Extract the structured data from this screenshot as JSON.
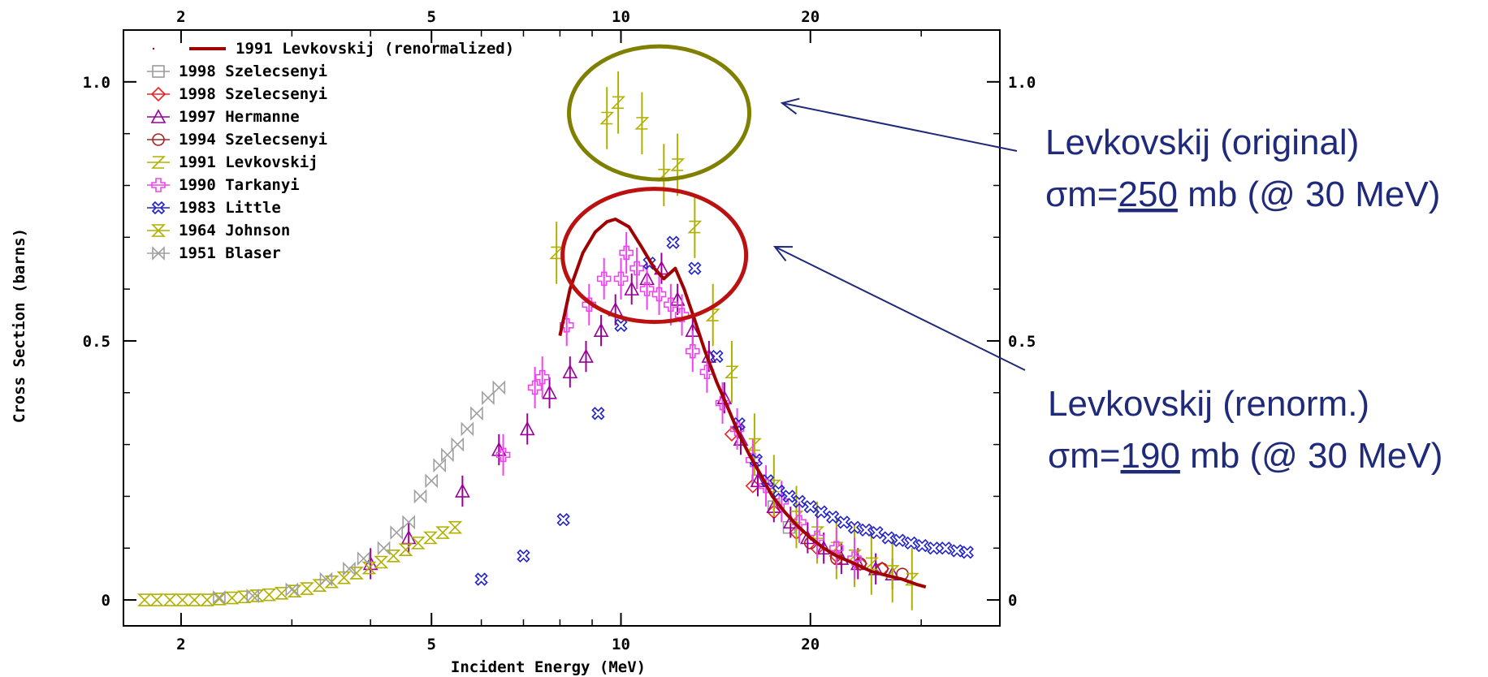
{
  "chart_data": {
    "type": "scatter",
    "xlabel": "Incident Energy (MeV)",
    "ylabel": "Cross Section (barns)",
    "xscale": "log",
    "xlim": [
      1.62,
      40
    ],
    "ylim": [
      -0.05,
      1.1
    ],
    "xticks": [
      2,
      5,
      10,
      20
    ],
    "xtick_labels": [
      "2",
      "5",
      "10",
      "20"
    ],
    "yticks": [
      0,
      0.5,
      1.0
    ],
    "ytick_labels": [
      "0",
      "0.5",
      "1.0"
    ],
    "legend_position": "top-left",
    "grid": false,
    "series": [
      {
        "name": "1991 Levkovskij (renormalized)",
        "marker": "line",
        "color": "#a00000",
        "points": [
          [
            8.0,
            0.51
          ],
          [
            8.3,
            0.6
          ],
          [
            8.7,
            0.67
          ],
          [
            9.1,
            0.71
          ],
          [
            9.5,
            0.73
          ],
          [
            9.8,
            0.735
          ],
          [
            10.3,
            0.72
          ],
          [
            10.8,
            0.68
          ],
          [
            11.3,
            0.64
          ],
          [
            11.7,
            0.62
          ],
          [
            12.2,
            0.64
          ],
          [
            12.6,
            0.6
          ],
          [
            13.1,
            0.54
          ],
          [
            13.6,
            0.48
          ],
          [
            14.2,
            0.42
          ],
          [
            14.8,
            0.37
          ],
          [
            15.4,
            0.32
          ],
          [
            16.0,
            0.28
          ],
          [
            16.7,
            0.24
          ],
          [
            17.4,
            0.2
          ],
          [
            18.2,
            0.17
          ],
          [
            19.0,
            0.145
          ],
          [
            20.0,
            0.12
          ],
          [
            21.0,
            0.1
          ],
          [
            22.0,
            0.085
          ],
          [
            23.0,
            0.075
          ],
          [
            24.0,
            0.065
          ],
          [
            25.0,
            0.055
          ],
          [
            26.5,
            0.047
          ],
          [
            28.0,
            0.04
          ],
          [
            29.5,
            0.03
          ],
          [
            30.5,
            0.025
          ]
        ]
      },
      {
        "name": "1998 Szelecsenyi",
        "marker": "square",
        "color": "#9a9a9a",
        "points": [
          [
            16.5,
            0.23
          ],
          [
            17.5,
            0.18
          ],
          [
            18.5,
            0.14
          ]
        ]
      },
      {
        "name": "1998 Szelecsenyi",
        "marker": "diamond",
        "color": "#ee2222",
        "points": [
          [
            15.0,
            0.32
          ],
          [
            16.2,
            0.22
          ],
          [
            17.5,
            0.17
          ],
          [
            19.0,
            0.13
          ],
          [
            20.5,
            0.1
          ],
          [
            22.0,
            0.085
          ],
          [
            24.0,
            0.07
          ],
          [
            26.0,
            0.06
          ]
        ]
      },
      {
        "name": "1997 Hermanne",
        "marker": "triangle",
        "color": "#990099",
        "points": [
          [
            4.0,
            0.07
          ],
          [
            4.6,
            0.12
          ],
          [
            5.6,
            0.21
          ],
          [
            6.4,
            0.29
          ],
          [
            7.1,
            0.33
          ],
          [
            7.7,
            0.4
          ],
          [
            8.3,
            0.44
          ],
          [
            8.8,
            0.47
          ],
          [
            9.3,
            0.52
          ],
          [
            9.8,
            0.56
          ],
          [
            10.4,
            0.6
          ],
          [
            11.0,
            0.62
          ],
          [
            11.6,
            0.64
          ],
          [
            12.3,
            0.58
          ],
          [
            13.0,
            0.52
          ],
          [
            13.8,
            0.47
          ],
          [
            14.6,
            0.39
          ],
          [
            15.5,
            0.31
          ],
          [
            16.5,
            0.23
          ],
          [
            17.5,
            0.18
          ],
          [
            18.6,
            0.15
          ],
          [
            19.8,
            0.12
          ],
          [
            21.0,
            0.1
          ],
          [
            22.4,
            0.08
          ],
          [
            23.8,
            0.07
          ],
          [
            25.4,
            0.06
          ],
          [
            27.0,
            0.05
          ]
        ]
      },
      {
        "name": "1994 Szelecsenyi",
        "marker": "circle",
        "color": "#aa2222",
        "points": [
          [
            20.0,
            0.11
          ],
          [
            22.0,
            0.08
          ],
          [
            24.0,
            0.07
          ],
          [
            26.0,
            0.06
          ],
          [
            28.0,
            0.05
          ]
        ]
      },
      {
        "name": "1991 Levkovskij",
        "marker": "zsym",
        "color": "#b0b000",
        "points": [
          [
            7.9,
            0.67
          ],
          [
            9.5,
            0.93
          ],
          [
            9.9,
            0.96
          ],
          [
            10.8,
            0.92
          ],
          [
            11.7,
            0.82
          ],
          [
            12.3,
            0.84
          ],
          [
            13.1,
            0.72
          ],
          [
            14.0,
            0.55
          ],
          [
            15.0,
            0.44
          ],
          [
            16.3,
            0.3
          ],
          [
            17.5,
            0.22
          ],
          [
            19.0,
            0.16
          ],
          [
            20.5,
            0.13
          ],
          [
            22.0,
            0.1
          ],
          [
            23.5,
            0.085
          ],
          [
            25.0,
            0.07
          ],
          [
            27.0,
            0.055
          ],
          [
            29.0,
            0.04
          ]
        ]
      },
      {
        "name": "1990 Tarkanyi",
        "marker": "plus",
        "color": "#ee44ee",
        "points": [
          [
            6.5,
            0.28
          ],
          [
            7.3,
            0.41
          ],
          [
            7.5,
            0.43
          ],
          [
            8.2,
            0.53
          ],
          [
            8.9,
            0.57
          ],
          [
            9.4,
            0.62
          ],
          [
            10.0,
            0.62
          ],
          [
            10.2,
            0.67
          ],
          [
            10.6,
            0.64
          ],
          [
            11.0,
            0.6
          ],
          [
            11.5,
            0.59
          ],
          [
            12.0,
            0.57
          ],
          [
            12.5,
            0.55
          ],
          [
            13.0,
            0.48
          ],
          [
            13.7,
            0.44
          ],
          [
            14.5,
            0.38
          ],
          [
            15.3,
            0.33
          ],
          [
            16.2,
            0.27
          ],
          [
            17.0,
            0.22
          ],
          [
            18.0,
            0.19
          ],
          [
            19.2,
            0.15
          ],
          [
            20.5,
            0.12
          ],
          [
            22.0,
            0.1
          ],
          [
            23.5,
            0.08
          ]
        ]
      },
      {
        "name": "1983 Little",
        "marker": "xsym",
        "color": "#2222cc",
        "points": [
          [
            6.0,
            0.04
          ],
          [
            7.0,
            0.085
          ],
          [
            8.1,
            0.155
          ],
          [
            9.2,
            0.36
          ],
          [
            10.0,
            0.53
          ],
          [
            11.1,
            0.65
          ],
          [
            12.1,
            0.69
          ],
          [
            13.1,
            0.64
          ],
          [
            14.2,
            0.47
          ],
          [
            15.4,
            0.34
          ],
          [
            16.4,
            0.27
          ],
          [
            17.1,
            0.23
          ],
          [
            17.8,
            0.21
          ],
          [
            18.5,
            0.2
          ],
          [
            19.2,
            0.19
          ],
          [
            20.0,
            0.18
          ],
          [
            20.8,
            0.17
          ],
          [
            21.7,
            0.16
          ],
          [
            22.6,
            0.15
          ],
          [
            23.5,
            0.14
          ],
          [
            24.5,
            0.135
          ],
          [
            25.5,
            0.13
          ],
          [
            26.6,
            0.12
          ],
          [
            27.7,
            0.115
          ],
          [
            28.9,
            0.11
          ],
          [
            30.1,
            0.105
          ],
          [
            31.4,
            0.1
          ],
          [
            32.8,
            0.1
          ],
          [
            34.2,
            0.095
          ],
          [
            35.5,
            0.092
          ]
        ]
      },
      {
        "name": "1964 Johnson",
        "marker": "hourglass",
        "color": "#b0b000",
        "points": [
          [
            1.75,
            0
          ],
          [
            1.83,
            0
          ],
          [
            1.92,
            0
          ],
          [
            2.01,
            0
          ],
          [
            2.1,
            0
          ],
          [
            2.2,
            0
          ],
          [
            2.3,
            0.002
          ],
          [
            2.41,
            0.004
          ],
          [
            2.52,
            0.006
          ],
          [
            2.64,
            0.008
          ],
          [
            2.76,
            0.01
          ],
          [
            2.89,
            0.013
          ],
          [
            3.03,
            0.017
          ],
          [
            3.17,
            0.022
          ],
          [
            3.32,
            0.028
          ],
          [
            3.47,
            0.035
          ],
          [
            3.63,
            0.043
          ],
          [
            3.8,
            0.052
          ],
          [
            3.98,
            0.062
          ],
          [
            4.16,
            0.073
          ],
          [
            4.35,
            0.085
          ],
          [
            4.55,
            0.097
          ],
          [
            4.76,
            0.11
          ],
          [
            4.98,
            0.12
          ],
          [
            5.21,
            0.13
          ],
          [
            5.45,
            0.14
          ]
        ]
      },
      {
        "name": "1951 Blaser",
        "marker": "bowtie",
        "color": "#a0a0a0",
        "points": [
          [
            2.3,
            0.005
          ],
          [
            2.6,
            0.008
          ],
          [
            3.0,
            0.02
          ],
          [
            3.4,
            0.04
          ],
          [
            3.7,
            0.06
          ],
          [
            3.9,
            0.08
          ],
          [
            4.2,
            0.1
          ],
          [
            4.4,
            0.13
          ],
          [
            4.6,
            0.15
          ],
          [
            4.8,
            0.2
          ],
          [
            5.0,
            0.23
          ],
          [
            5.15,
            0.26
          ],
          [
            5.3,
            0.28
          ],
          [
            5.5,
            0.3
          ],
          [
            5.7,
            0.33
          ],
          [
            5.9,
            0.36
          ],
          [
            6.15,
            0.39
          ],
          [
            6.4,
            0.41
          ]
        ]
      }
    ],
    "annotations": [
      {
        "lines": [
          "Levkovskij (original)",
          "σm=250 mb (@ 30 MeV)"
        ],
        "underlined": "250",
        "circle_color": "#808000",
        "circle_center": [
          11.5,
          0.94
        ]
      },
      {
        "lines": [
          "Levkovskij (renorm.)",
          "σm=190 mb (@ 30 MeV)"
        ],
        "underlined": "190",
        "circle_color": "#bb1111",
        "circle_center": [
          11.3,
          0.665
        ]
      }
    ]
  }
}
